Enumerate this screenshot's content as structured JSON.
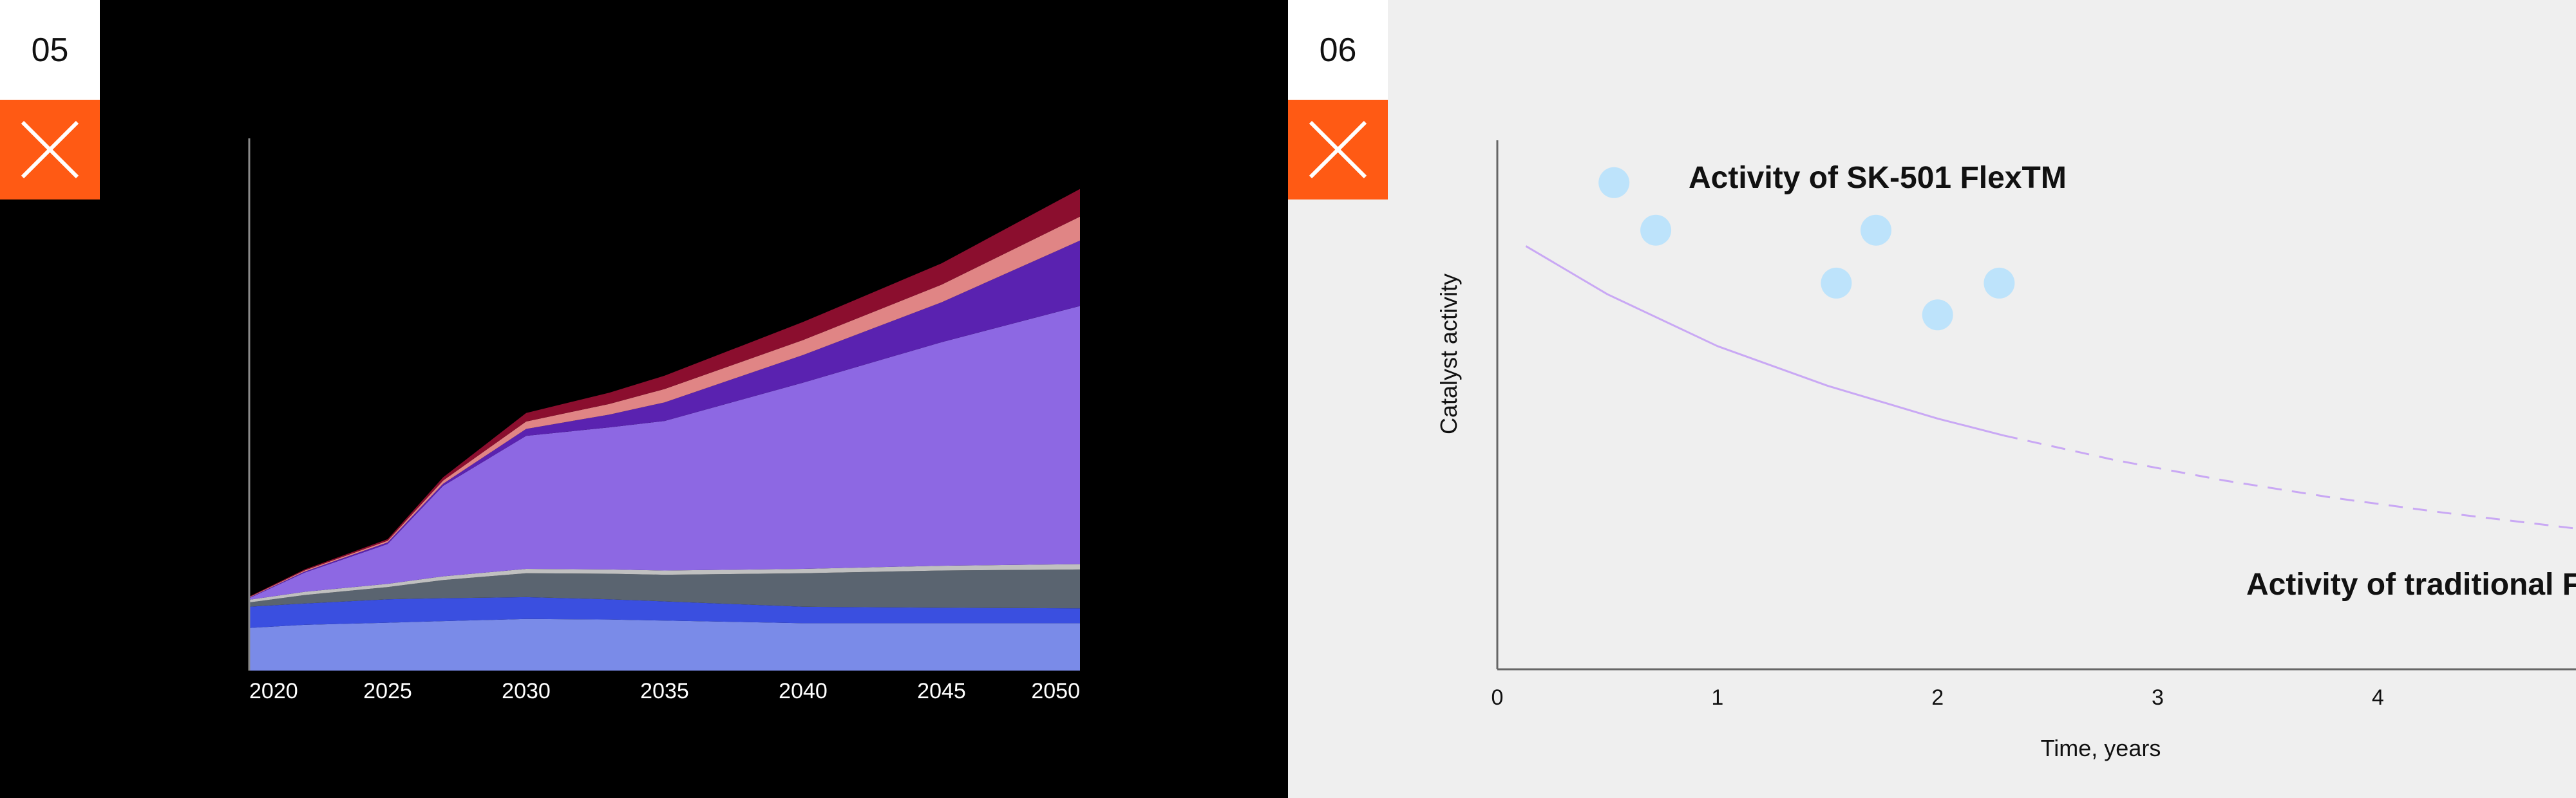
{
  "accent_color": "#ff5a14",
  "panels": [
    {
      "number": "05",
      "icon": "close-icon",
      "background": "#000000"
    },
    {
      "number": "06",
      "icon": "close-icon",
      "background": "#efefef"
    }
  ],
  "chart_data": [
    {
      "type": "area",
      "stacked": true,
      "title": "",
      "xlabel": "",
      "ylabel": "",
      "x": [
        2020,
        2022,
        2025,
        2027,
        2030,
        2033,
        2035,
        2040,
        2045,
        2050
      ],
      "xlim": [
        2020,
        2052
      ],
      "ylim": [
        0,
        100
      ],
      "x_ticks": [
        "2020",
        "2025",
        "2030",
        "2035",
        "2040",
        "2045",
        "2050"
      ],
      "grid": false,
      "series": [
        {
          "color": "#7a8be8",
          "values": [
            8,
            8.6,
            9,
            9.3,
            9.7,
            9.6,
            9.4,
            8.9,
            8.9,
            8.9
          ]
        },
        {
          "color": "#3a4fe0",
          "values": [
            4,
            4,
            4.4,
            4.3,
            4.1,
            3.8,
            3.6,
            3.1,
            2.9,
            2.8
          ]
        },
        {
          "color": "#5a6470",
          "values": [
            0.8,
            1.6,
            2.3,
            3.4,
            4.5,
            4.8,
            5,
            6.3,
            7,
            7.3
          ]
        },
        {
          "color": "#c0c0c0",
          "values": [
            0.5,
            0.6,
            0.6,
            0.7,
            0.8,
            0.8,
            0.8,
            0.8,
            0.9,
            1
          ]
        },
        {
          "color": "#8d68e3",
          "values": [
            0.3,
            3.6,
            7.5,
            17,
            25,
            26.7,
            28.1,
            35,
            42,
            48.5
          ]
        },
        {
          "color": "#5a22b0",
          "values": [
            0.1,
            0.2,
            0.3,
            0.4,
            1.3,
            2.4,
            3.5,
            5.2,
            7.5,
            12.3
          ]
        },
        {
          "color": "#e08585",
          "values": [
            0.1,
            0.2,
            0.3,
            0.6,
            1.4,
            2,
            2.5,
            2.8,
            3.3,
            4.5
          ]
        },
        {
          "color": "#8b0e2e",
          "values": [
            0.1,
            0.2,
            0.3,
            0.6,
            1.6,
            2.1,
            2.5,
            3.4,
            4,
            5.2
          ]
        }
      ]
    },
    {
      "type": "scatter",
      "title": "",
      "xlabel": "Time, years",
      "ylabel": "Catalyst activity",
      "xlim": [
        0,
        4.9
      ],
      "ylim": [
        0,
        100
      ],
      "x_ticks": [
        "0",
        "1",
        "2",
        "3",
        "4"
      ],
      "grid": false,
      "series": [
        {
          "name": "Activity of SK-501 FlexTM",
          "color": "#bde3fb",
          "points": [
            {
              "x": 0.53,
              "y": 92
            },
            {
              "x": 0.72,
              "y": 83
            },
            {
              "x": 1.54,
              "y": 73
            },
            {
              "x": 1.72,
              "y": 83
            },
            {
              "x": 2.0,
              "y": 67
            },
            {
              "x": 2.28,
              "y": 73
            }
          ]
        },
        {
          "name": "Activity of traditional Fe-Cr catalyst",
          "color": "#c9a8f4",
          "line": true,
          "dash_from_x": 2.3,
          "x": [
            0.13,
            0.5,
            1.0,
            1.5,
            2.0,
            2.3,
            2.8,
            3.3,
            3.8,
            4.3,
            4.9
          ],
          "values": [
            80,
            70.9,
            61.1,
            53.6,
            47.4,
            44.2,
            39.6,
            35.7,
            32.4,
            29.6,
            26.6
          ]
        }
      ]
    }
  ]
}
